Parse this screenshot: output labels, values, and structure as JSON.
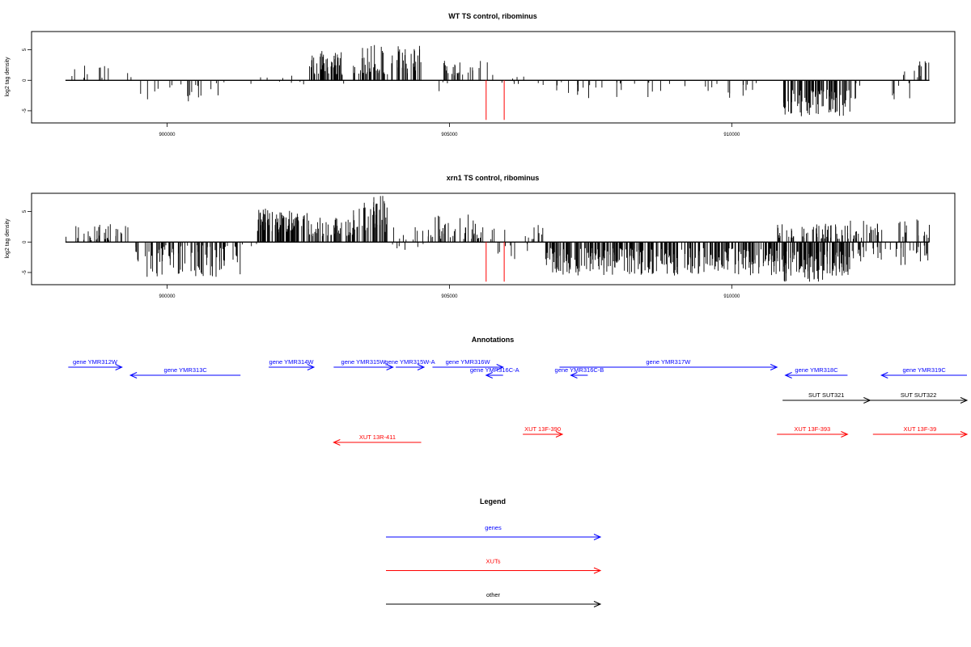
{
  "colors": {
    "genes": "#0000ff",
    "XUTs": "#ff0000",
    "other": "#000000",
    "marker": "#ff0000",
    "signal": "#000000"
  },
  "chart_data": [
    {
      "type": "bar",
      "title": "WT TS control, ribominus",
      "ylabel": "log2 tag density",
      "xlim": [
        897600,
        913950
      ],
      "ylim": [
        -7,
        8
      ],
      "xticks": [
        900000,
        905000,
        910000
      ],
      "xtick_labels": [
        "900000",
        "905000",
        "910000"
      ],
      "yticks": [
        -5,
        0,
        5
      ],
      "ytick_labels": [
        "-5",
        "0",
        "5"
      ],
      "marker_lines": [
        905650,
        905970
      ],
      "marker_range": [
        -6.5,
        0
      ],
      "regions": [
        {
          "x": [
            898200,
            899400
          ],
          "density": 0.01,
          "amp": [
            0.2,
            2.8
          ],
          "dir": "pos"
        },
        {
          "x": [
            899400,
            901400
          ],
          "density": 0.01,
          "amp": [
            0.3,
            3.6
          ],
          "dir": "neg"
        },
        {
          "x": [
            901400,
            901600
          ],
          "density": 0.005,
          "amp": [
            0.2,
            1.0
          ],
          "dir": "mix"
        },
        {
          "x": [
            901600,
            902500
          ],
          "density": 0.004,
          "amp": [
            0.2,
            0.8
          ],
          "dir": "neg"
        },
        {
          "x": [
            901600,
            902500
          ],
          "density": 0.004,
          "amp": [
            0.2,
            0.8
          ],
          "dir": "pos"
        },
        {
          "x": [
            902500,
            903100
          ],
          "density": 0.08,
          "amp": [
            1.0,
            4.8
          ],
          "dir": "pos"
        },
        {
          "x": [
            903100,
            903300
          ],
          "density": 0.01,
          "amp": [
            0.2,
            1.0
          ],
          "dir": "mix"
        },
        {
          "x": [
            903300,
            904500
          ],
          "density": 0.06,
          "amp": [
            1.0,
            5.8
          ],
          "dir": "pos"
        },
        {
          "x": [
            904400,
            905000
          ],
          "density": 0.005,
          "amp": [
            0.3,
            2.5
          ],
          "dir": "neg"
        },
        {
          "x": [
            904900,
            905800
          ],
          "density": 0.03,
          "amp": [
            0.8,
            3.2
          ],
          "dir": "pos"
        },
        {
          "x": [
            905800,
            906700
          ],
          "density": 0.01,
          "amp": [
            0.2,
            1.5
          ],
          "dir": "mix"
        },
        {
          "x": [
            906700,
            910500
          ],
          "density": 0.01,
          "amp": [
            0.3,
            3.0
          ],
          "dir": "neg"
        },
        {
          "x": [
            910900,
            912100
          ],
          "density": 0.08,
          "amp": [
            1.5,
            6.0
          ],
          "dir": "neg"
        },
        {
          "x": [
            911900,
            913250
          ],
          "density": 0.008,
          "amp": [
            0.3,
            3.2
          ],
          "dir": "neg"
        },
        {
          "x": [
            913000,
            913500
          ],
          "density": 0.025,
          "amp": [
            0.5,
            3.2
          ],
          "dir": "pos"
        }
      ]
    },
    {
      "type": "bar",
      "title": "xrn1 TS control, ribominus",
      "ylabel": "log2 tag density",
      "xlim": [
        897600,
        913950
      ],
      "ylim": [
        -7,
        8
      ],
      "xticks": [
        900000,
        905000,
        910000
      ],
      "xtick_labels": [
        "900000",
        "905000",
        "910000"
      ],
      "yticks": [
        -5,
        0,
        5
      ],
      "ytick_labels": [
        "-5",
        "0",
        "5"
      ],
      "marker_lines": [
        905650,
        905970
      ],
      "marker_range": [
        -6.5,
        0
      ],
      "regions": [
        {
          "x": [
            898200,
            899400
          ],
          "density": 0.03,
          "amp": [
            0.3,
            3.0
          ],
          "dir": "pos"
        },
        {
          "x": [
            899400,
            901300
          ],
          "density": 0.05,
          "amp": [
            0.5,
            5.8
          ],
          "dir": "neg"
        },
        {
          "x": [
            901300,
            901600
          ],
          "density": 0.01,
          "amp": [
            0.3,
            1.5
          ],
          "dir": "mix"
        },
        {
          "x": [
            901600,
            902500
          ],
          "density": 0.1,
          "amp": [
            1.5,
            5.5
          ],
          "dir": "pos"
        },
        {
          "x": [
            902500,
            903300
          ],
          "density": 0.06,
          "amp": [
            1.0,
            4.0
          ],
          "dir": "pos"
        },
        {
          "x": [
            903300,
            903900
          ],
          "density": 0.07,
          "amp": [
            1.5,
            8.0
          ],
          "dir": "pos"
        },
        {
          "x": [
            903900,
            904600
          ],
          "density": 0.02,
          "amp": [
            0.3,
            3.0
          ],
          "dir": "mix"
        },
        {
          "x": [
            904600,
            905600
          ],
          "density": 0.04,
          "amp": [
            0.5,
            4.5
          ],
          "dir": "pos"
        },
        {
          "x": [
            905600,
            906700
          ],
          "density": 0.02,
          "amp": [
            0.3,
            2.8
          ],
          "dir": "mix"
        },
        {
          "x": [
            906700,
            910900
          ],
          "density": 0.08,
          "amp": [
            1.0,
            5.5
          ],
          "dir": "neg"
        },
        {
          "x": [
            910900,
            912100
          ],
          "density": 0.1,
          "amp": [
            1.5,
            6.5
          ],
          "dir": "neg"
        },
        {
          "x": [
            910800,
            912200
          ],
          "density": 0.04,
          "amp": [
            0.5,
            3.0
          ],
          "dir": "pos"
        },
        {
          "x": [
            912100,
            913500
          ],
          "density": 0.05,
          "amp": [
            0.5,
            3.8
          ],
          "dir": "mix"
        }
      ]
    },
    {
      "type": "annotation-track",
      "title": "Annotations",
      "features": [
        {
          "label": "gene YMR312W",
          "kind": "genes",
          "strand": "+",
          "row": 0,
          "x": [
            898250,
            899200
          ]
        },
        {
          "label": "gene YMR313C",
          "kind": "genes",
          "strand": "-",
          "row": 1,
          "x": [
            899350,
            901300
          ]
        },
        {
          "label": "gene YMR314W",
          "kind": "genes",
          "strand": "+",
          "row": 0,
          "x": [
            901800,
            902600
          ]
        },
        {
          "label": "gene YMR315W",
          "kind": "genes",
          "strand": "+",
          "row": 0,
          "x": [
            902950,
            904000
          ]
        },
        {
          "label": "gene YMR315W-A",
          "kind": "genes",
          "strand": "+",
          "row": 0,
          "x": [
            904050,
            904550
          ]
        },
        {
          "label": "gene YMR316W",
          "kind": "genes",
          "strand": "+",
          "row": 0,
          "x": [
            904700,
            905950
          ]
        },
        {
          "label": "gene YMR316C-A",
          "kind": "genes",
          "strand": "-",
          "row": 1,
          "x": [
            905650,
            905950
          ]
        },
        {
          "label": "gene YMR316C-B",
          "kind": "genes",
          "strand": "-",
          "row": 1,
          "x": [
            907150,
            907450
          ]
        },
        {
          "label": "gene YMR317W",
          "kind": "genes",
          "strand": "+",
          "row": 0,
          "x": [
            906950,
            910800
          ]
        },
        {
          "label": "gene YMR318C",
          "kind": "genes",
          "strand": "-",
          "row": 1,
          "x": [
            910950,
            912050
          ]
        },
        {
          "label": "gene YMR319C",
          "kind": "genes",
          "strand": "-",
          "row": 1,
          "x": [
            912650,
            914500
          ]
        },
        {
          "label": "SUT SUT321",
          "kind": "other",
          "strand": "+",
          "row": 2,
          "x": [
            910900,
            912450
          ]
        },
        {
          "label": "SUT SUT322",
          "kind": "other",
          "strand": "+",
          "row": 2,
          "x": [
            912450,
            914500
          ]
        },
        {
          "label": "XUT 13R-411",
          "kind": "XUTs",
          "strand": "-",
          "row": 4,
          "x": [
            902950,
            904500
          ]
        },
        {
          "label": "XUT 13F-390",
          "kind": "XUTs",
          "strand": "+",
          "row": 3,
          "x": [
            906300,
            907000
          ]
        },
        {
          "label": "XUT 13F-393",
          "kind": "XUTs",
          "strand": "+",
          "row": 3,
          "x": [
            910800,
            912050
          ]
        },
        {
          "label": "XUT 13F-39",
          "kind": "XUTs",
          "strand": "+",
          "row": 3,
          "x": [
            912500,
            914500
          ]
        }
      ]
    },
    {
      "type": "legend",
      "title": "Legend",
      "entries": [
        {
          "label": "genes",
          "kind": "genes"
        },
        {
          "label": "XUTs",
          "kind": "XUTs"
        },
        {
          "label": "other",
          "kind": "other"
        }
      ]
    }
  ]
}
